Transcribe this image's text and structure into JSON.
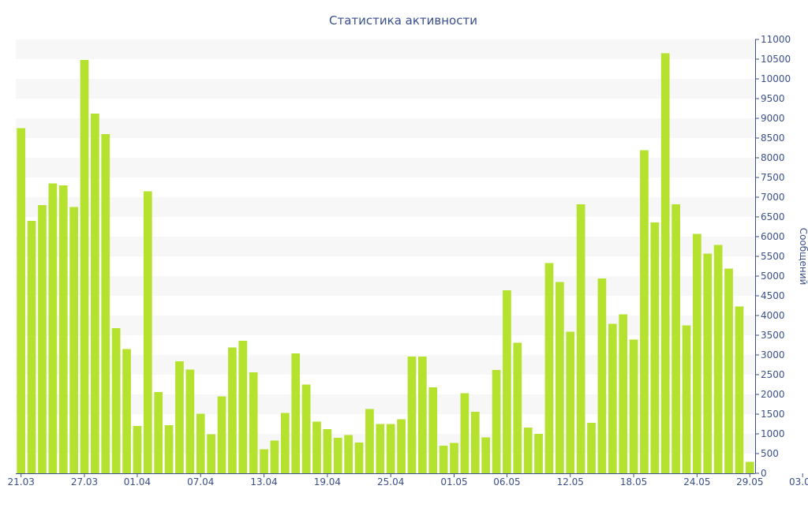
{
  "chart_data": {
    "type": "bar",
    "title": "Статистика активности",
    "ylabel": "Сообщений",
    "xlabel": "",
    "y_axis_side": "right",
    "ylim": [
      0,
      11000
    ],
    "y_ticks": [
      0,
      500,
      1000,
      1500,
      2000,
      2500,
      3000,
      3500,
      4000,
      4500,
      5000,
      5500,
      6000,
      6500,
      7000,
      7500,
      8000,
      8500,
      9000,
      9500,
      10000,
      10500,
      11000
    ],
    "x_tick_labels": [
      {
        "label": "21.03",
        "index": 0
      },
      {
        "label": "27.03",
        "index": 6
      },
      {
        "label": "01.04",
        "index": 11
      },
      {
        "label": "07.04",
        "index": 17
      },
      {
        "label": "13.04",
        "index": 23
      },
      {
        "label": "19.04",
        "index": 29
      },
      {
        "label": "25.04",
        "index": 35
      },
      {
        "label": "01.05",
        "index": 41
      },
      {
        "label": "06.05",
        "index": 46
      },
      {
        "label": "12.05",
        "index": 52
      },
      {
        "label": "18.05",
        "index": 58
      },
      {
        "label": "24.05",
        "index": 64
      },
      {
        "label": "29.05",
        "index": 69
      },
      {
        "label": "03.06",
        "index": 74
      }
    ],
    "grid": "alternating horizontal bands",
    "legend": "none",
    "series": [
      {
        "values": [
          8750,
          6400,
          6800,
          7350,
          7300,
          6750,
          10480,
          9120,
          8600,
          3680,
          3150,
          1200,
          7150,
          2060,
          1220,
          2840,
          2630,
          1510,
          990,
          1950,
          3190,
          3360,
          2560,
          610,
          830,
          1530,
          3040,
          2250,
          1310,
          1120,
          900,
          970,
          780,
          1630,
          1250,
          1250,
          1370,
          2960,
          2960,
          2180,
          700,
          770,
          2030,
          1560,
          910,
          2620,
          4640,
          3310,
          1160,
          1000,
          5330,
          4850,
          3590,
          6820,
          1280,
          4940,
          3790,
          4030,
          3390,
          8190,
          6360,
          10650,
          6820,
          3750,
          6070,
          5570,
          5790,
          5190,
          4230,
          290
        ]
      }
    ]
  },
  "colors": {
    "bar": "#b5e22f",
    "text": "#3a4f8c",
    "band": "#f7f7f7",
    "axis": "#3a4f8c"
  }
}
